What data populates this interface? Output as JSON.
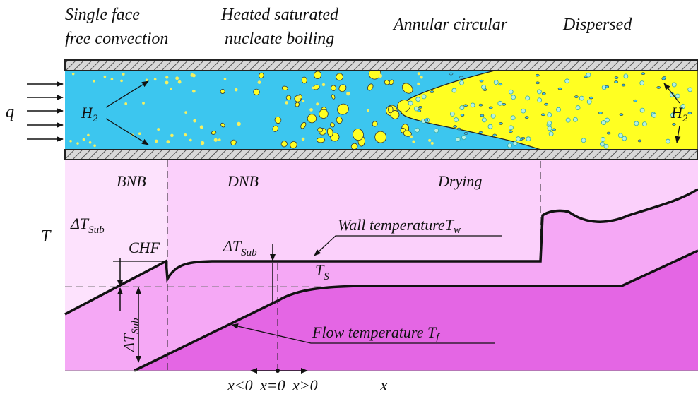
{
  "regimes": [
    {
      "lines": [
        "Single  face",
        "free convection"
      ]
    },
    {
      "lines": [
        "Heated saturated",
        "nucleate boiling"
      ]
    },
    {
      "lines": [
        "Annular circular"
      ]
    },
    {
      "lines": [
        "Dispersed"
      ]
    }
  ],
  "heat_flux_label": "q",
  "hydrogen_labels": [
    {
      "base": "H",
      "sub": "2"
    },
    {
      "base": "H",
      "sub": "2"
    }
  ],
  "zones": [
    "BNB",
    "DNB",
    "Drying"
  ],
  "axis": {
    "y": "T",
    "x": "x"
  },
  "chf": "CHF",
  "subcooling": [
    {
      "base": "ΔT",
      "sub": "Sub"
    },
    {
      "base": "ΔT",
      "sub": "Sub"
    },
    {
      "base": "ΔT",
      "sub": "Sub"
    }
  ],
  "saturation": {
    "base": "T",
    "sub": "S"
  },
  "wall_temperature": {
    "text": "Wall temperature",
    "symbol": "T",
    "sub": "w"
  },
  "flow_temperature": {
    "text": "Flow temperature ",
    "symbol": "T",
    "sub": "f"
  },
  "quality_labels": [
    "x<0",
    "x=0",
    "x>0"
  ]
}
